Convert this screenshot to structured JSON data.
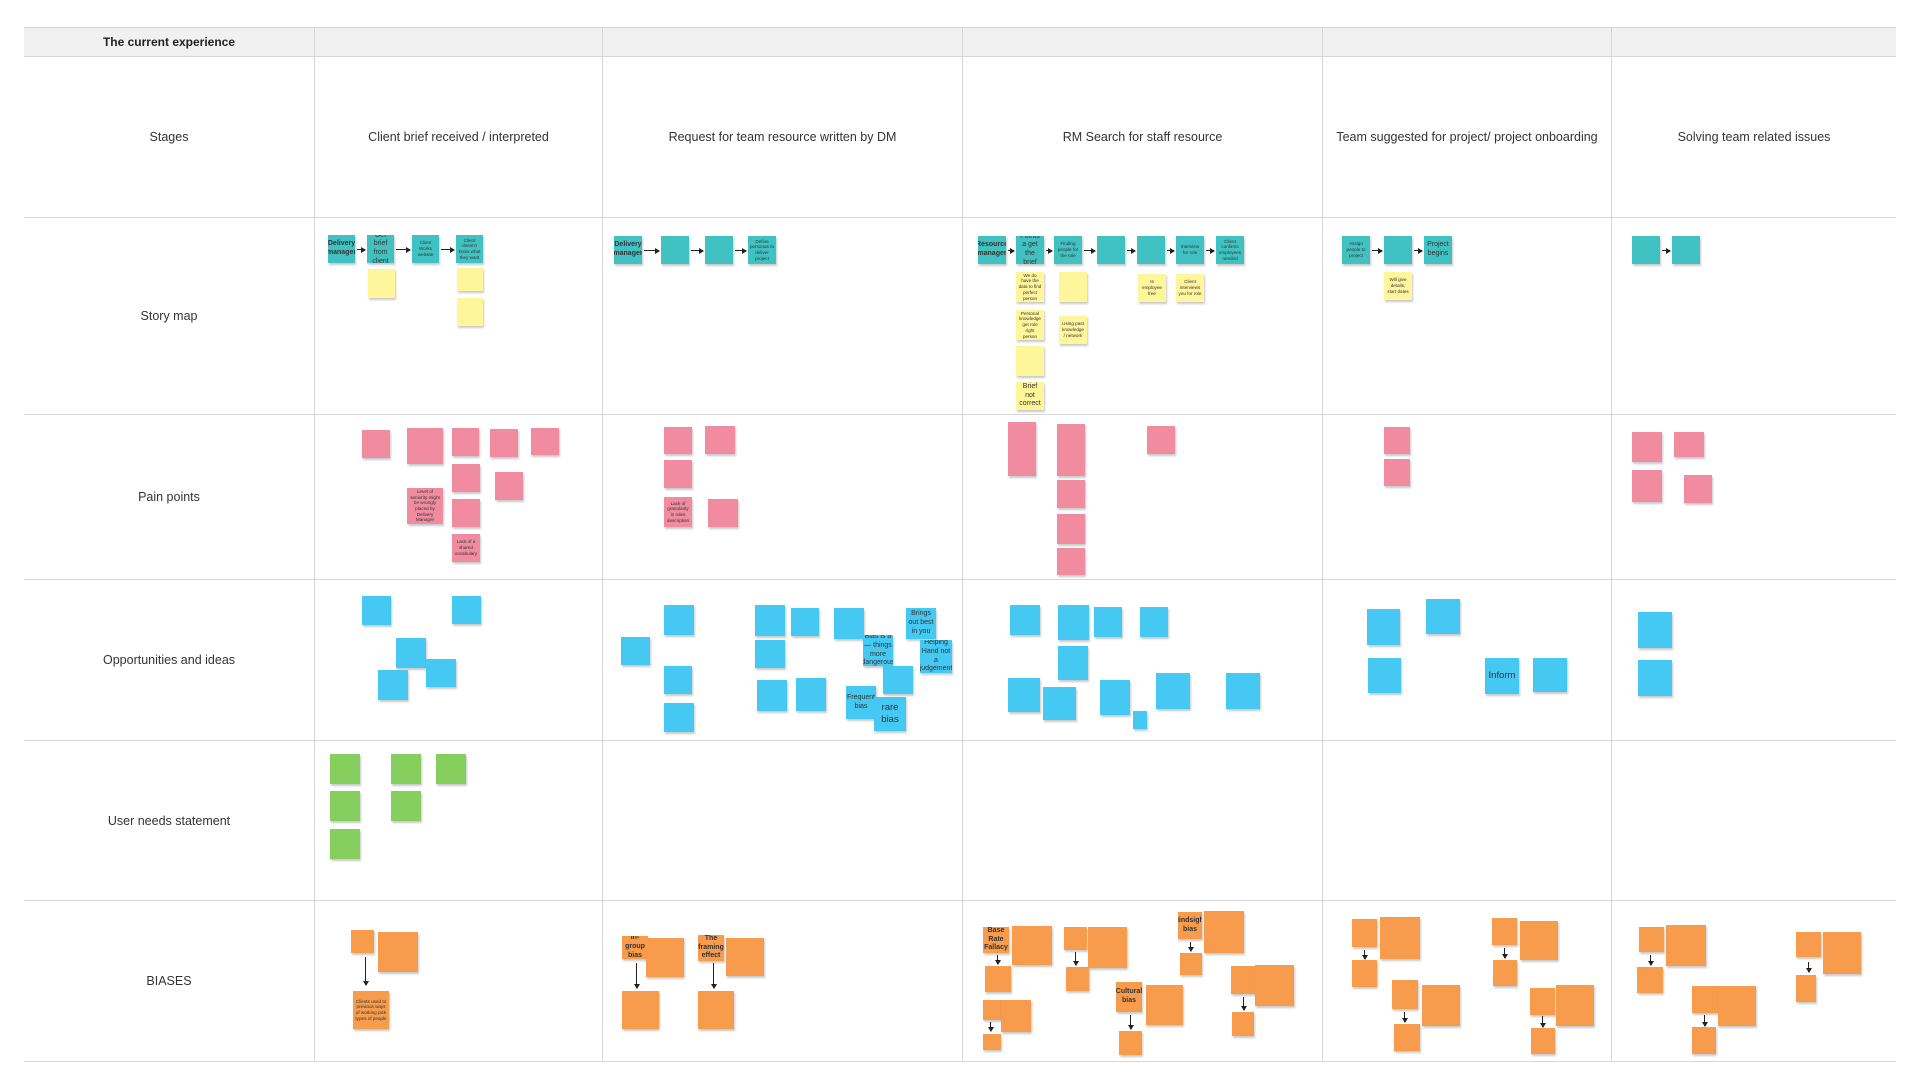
{
  "title": "The current experience",
  "rows": [
    {
      "id": "stages",
      "label": "Stages"
    },
    {
      "id": "story_map",
      "label": "Story map"
    },
    {
      "id": "pain_points",
      "label": "Pain points"
    },
    {
      "id": "opportunities",
      "label": "Opportunities and ideas"
    },
    {
      "id": "user_needs",
      "label": "User needs statement"
    },
    {
      "id": "biases",
      "label": "BIASES"
    }
  ],
  "stages": [
    "Client brief received / interpreted",
    "Request for team resource written by DM",
    "RM Search for staff resource",
    "Team suggested for project/ project onboarding",
    "Solving team related issues"
  ],
  "notes": {
    "s1_dm": "Delivery manager",
    "s1_brief": "Get brief from client",
    "s1_works": "Client Works website",
    "s1_doesnt": "Client doesn't know what they want",
    "s2_dm": "Delivery manager",
    "s2_define": "Define personas to deliver project",
    "s3_rm": "Resource manager",
    "s3_points": "Points a get the brief",
    "s3_finding": "Finding people for the role",
    "s3_interview": "Interview for role",
    "s3_confirms": "Client confirms employees needed",
    "s3_y1": "We do have the data to find perfect person",
    "s3_y2": "Personal knowledge get role right person",
    "s3_y3": "Brief not correct",
    "s3_y4": "Using past knowledge / network",
    "s3_y5": "Is employee free",
    "s3_y6": "Client interviews you for role",
    "s4_assign": "Assign people to project",
    "s4_begins": "Project begins",
    "s4_y1": "Will give details, start dates",
    "p1": "Lack of a shared vocabulary",
    "p2": "Lack of granularity in roles description",
    "p3": "Level of seniority might be wrongly placed by Delivery Manager",
    "o_inform": "Inform",
    "o_brings": "Brings out best in you",
    "o_helping": "Helping Hand not a judgement",
    "o_rare": "rare bias",
    "o_frequent": "Frequent bias",
    "o_bias": "Bias is a — things more dangerous",
    "b_in_group": "In-group bias",
    "b_framing": "The framing effect",
    "b_base_rate": "Base Rate Fallacy",
    "b_cultural": "Cultural bias",
    "b_hindsight": "Hindsight bias",
    "b_clients": "Clients used to previous ways of working pick types of people"
  },
  "colors": {
    "teal": "#41c2c2",
    "yellow": "#fff59a",
    "pink": "#f08ba0",
    "blue": "#45c8f2",
    "green": "#86cf5f",
    "orange": "#f79b4c",
    "grid": "#d6d6d6",
    "header_bg": "#f1f1f1"
  }
}
